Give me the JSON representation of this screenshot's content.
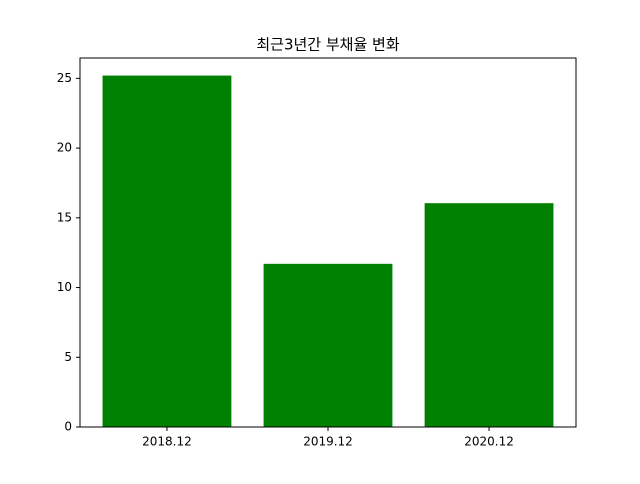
{
  "chart_data": {
    "type": "bar",
    "title": "최근3년간 부채율 변화",
    "categories": [
      "2018.12",
      "2019.12",
      "2020.12"
    ],
    "values": [
      25.2,
      11.7,
      16.05
    ],
    "color": "#008000",
    "ylim": [
      0,
      26.46
    ],
    "yticks": [
      0,
      5,
      10,
      15,
      20,
      25
    ],
    "grid": false
  }
}
